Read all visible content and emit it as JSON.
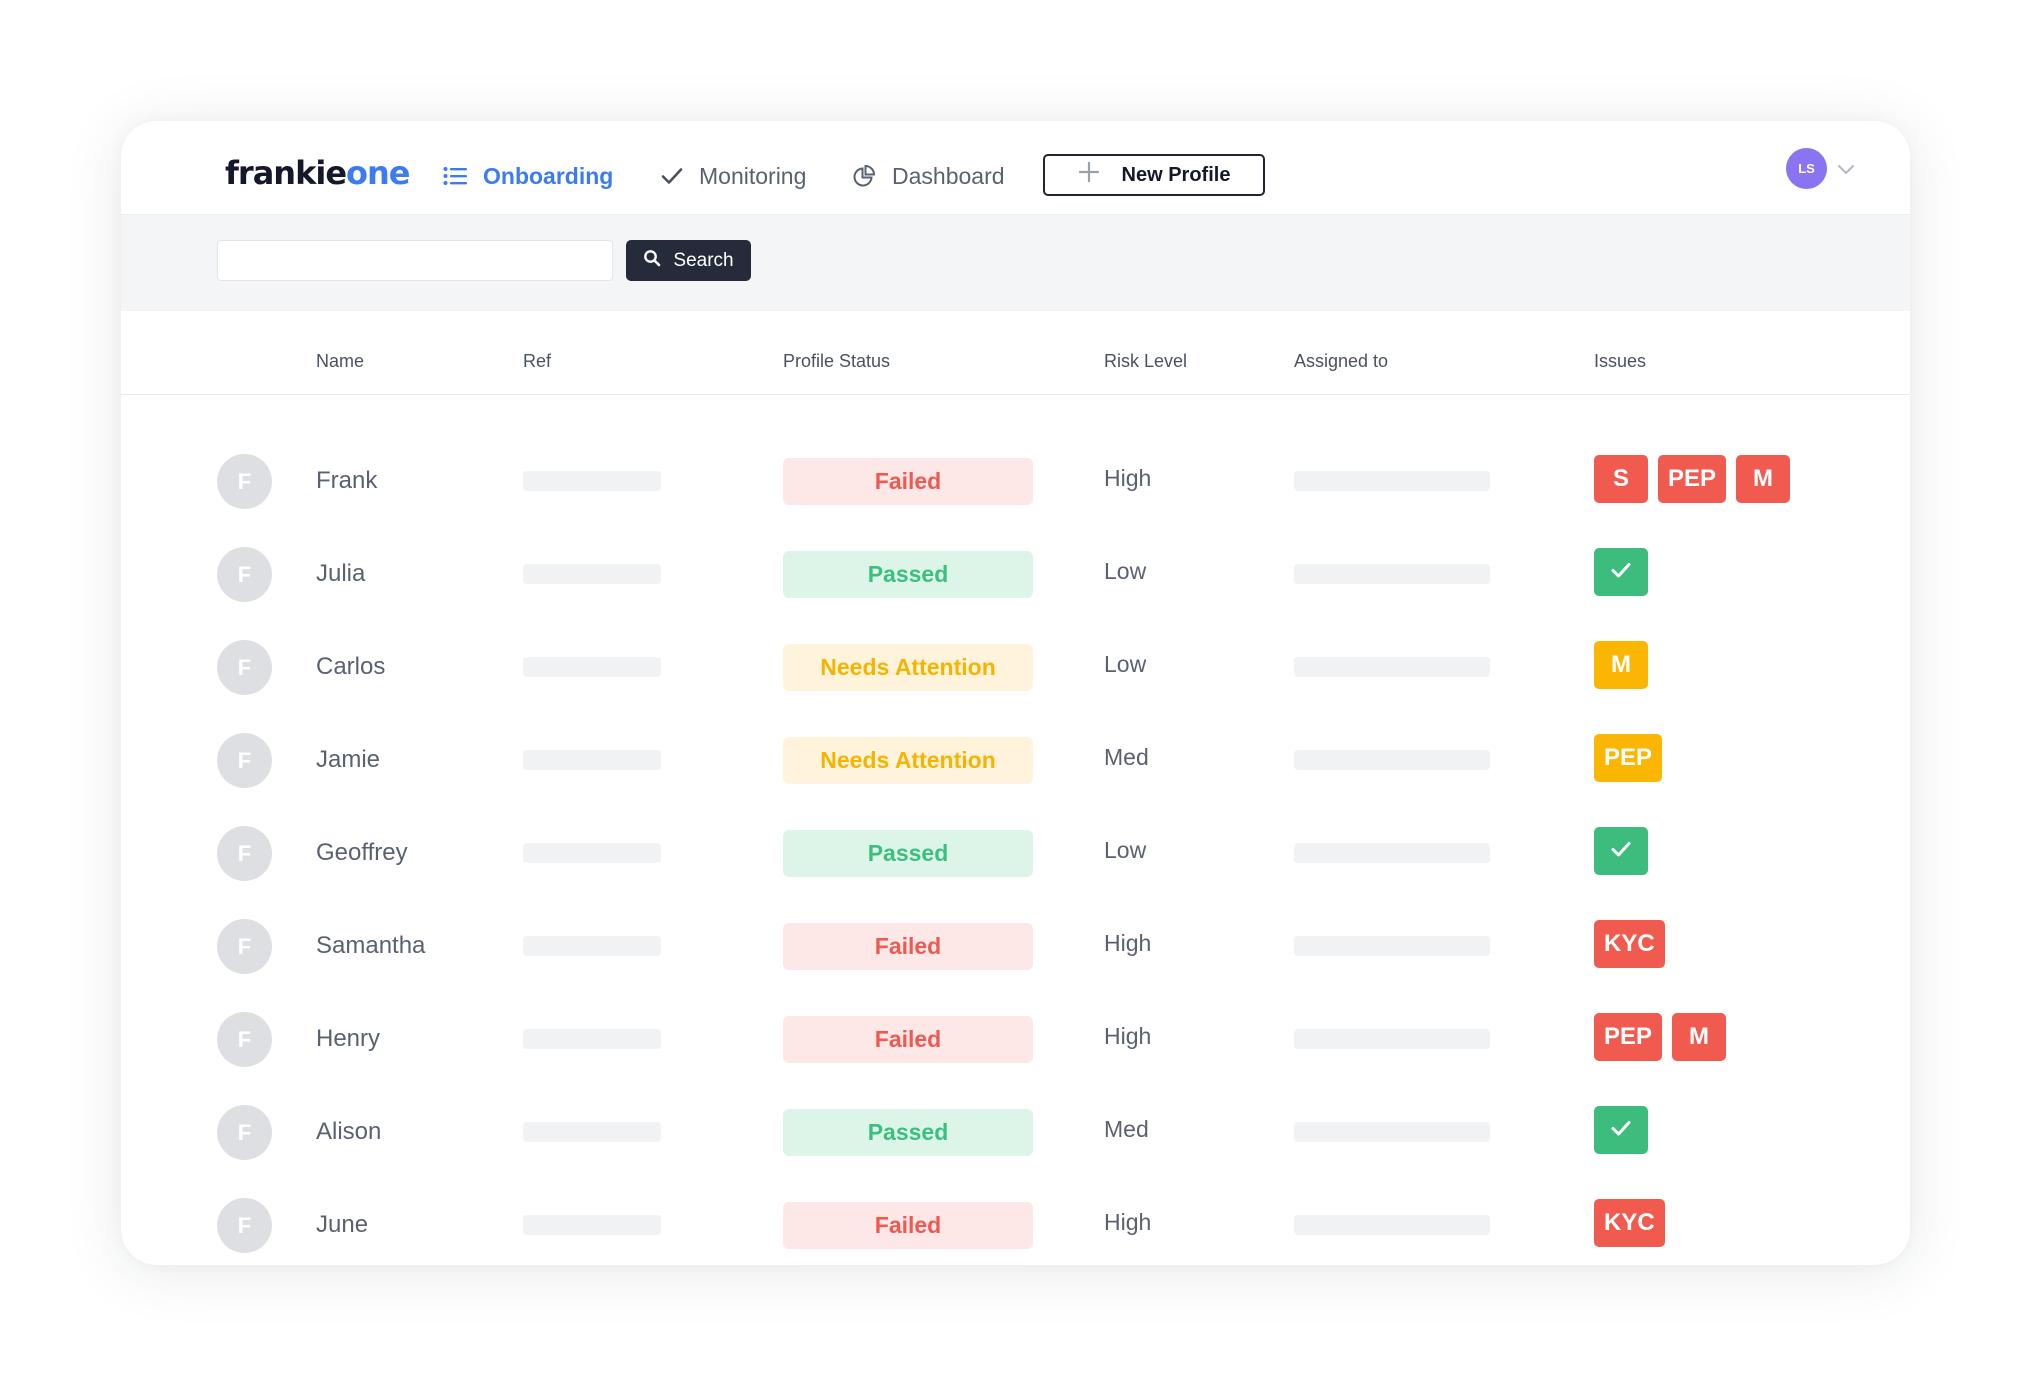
{
  "brand": {
    "part1": "frankie",
    "part2": "one"
  },
  "nav": {
    "onboarding": "Onboarding",
    "monitoring": "Monitoring",
    "dashboard": "Dashboard",
    "new_profile": "New Profile"
  },
  "user": {
    "initials": "LS"
  },
  "search": {
    "button": "Search",
    "placeholder": ""
  },
  "columns": {
    "name": "Name",
    "ref": "Ref",
    "status": "Profile Status",
    "risk": "Risk Level",
    "assigned": "Assigned to",
    "issues": "Issues"
  },
  "colors": {
    "accent": "#3d7bf0",
    "failed_text": "#ee5a52",
    "failed_bg": "#fde7e7",
    "passed_text": "#3cbf7f",
    "passed_bg": "#dcf5e8",
    "attention_text": "#f5b400",
    "attention_bg": "#fff3dc",
    "chip_red": "#f05a4f",
    "chip_green": "#3dbd7d",
    "chip_amber": "#fbb604"
  },
  "rows": [
    {
      "initial": "F",
      "name": "Frank",
      "status": "Failed",
      "status_kind": "failed",
      "risk": "High",
      "issues": [
        {
          "label": "S",
          "kind": "red"
        },
        {
          "label": "PEP",
          "kind": "red"
        },
        {
          "label": "M",
          "kind": "red"
        }
      ]
    },
    {
      "initial": "F",
      "name": "Julia",
      "status": "Passed",
      "status_kind": "passed",
      "risk": "Low",
      "issues": [
        {
          "label": "",
          "kind": "green",
          "icon": "check-icon"
        }
      ]
    },
    {
      "initial": "F",
      "name": "Carlos",
      "status": "Needs Attention",
      "status_kind": "attention",
      "risk": "Low",
      "issues": [
        {
          "label": "M",
          "kind": "amber"
        }
      ]
    },
    {
      "initial": "F",
      "name": "Jamie",
      "status": "Needs Attention",
      "status_kind": "attention",
      "risk": "Med",
      "issues": [
        {
          "label": "PEP",
          "kind": "amber"
        }
      ]
    },
    {
      "initial": "F",
      "name": "Geoffrey",
      "status": "Passed",
      "status_kind": "passed",
      "risk": "Low",
      "issues": [
        {
          "label": "",
          "kind": "green",
          "icon": "check-icon"
        }
      ]
    },
    {
      "initial": "F",
      "name": "Samantha",
      "status": "Failed",
      "status_kind": "failed",
      "risk": "High",
      "issues": [
        {
          "label": "KYC",
          "kind": "red"
        }
      ]
    },
    {
      "initial": "F",
      "name": "Henry",
      "status": "Failed",
      "status_kind": "failed",
      "risk": "High",
      "issues": [
        {
          "label": "PEP",
          "kind": "red"
        },
        {
          "label": "M",
          "kind": "red"
        }
      ]
    },
    {
      "initial": "F",
      "name": "Alison",
      "status": "Passed",
      "status_kind": "passed",
      "risk": "Med",
      "issues": [
        {
          "label": "",
          "kind": "green",
          "icon": "check-icon"
        }
      ]
    },
    {
      "initial": "F",
      "name": "June",
      "status": "Failed",
      "status_kind": "failed",
      "risk": "High",
      "issues": [
        {
          "label": "KYC",
          "kind": "red"
        }
      ]
    }
  ]
}
